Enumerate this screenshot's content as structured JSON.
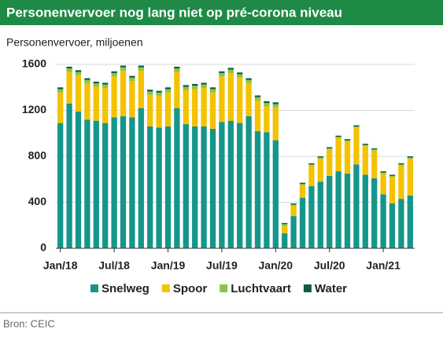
{
  "chart_data": {
    "type": "stacked_bar",
    "title": "Personenvervoer nog lang niet op pré-corona niveau",
    "y_label": "Personenvervoer, miljoenen",
    "source": "Bron: CEIC",
    "categories": [
      "Jan/18",
      null,
      null,
      null,
      null,
      null,
      "Jul/18",
      null,
      null,
      null,
      null,
      null,
      "Jan/19",
      null,
      null,
      null,
      null,
      null,
      "Jul/19",
      null,
      null,
      null,
      null,
      null,
      "Jan/20",
      null,
      null,
      null,
      null,
      null,
      "Jul/20",
      null,
      null,
      null,
      null,
      null,
      "Jan/21",
      null,
      null,
      null
    ],
    "series": [
      {
        "name": "Snelweg",
        "color": "#15968a",
        "values": [
          1090,
          1260,
          1190,
          1120,
          1110,
          1090,
          1140,
          1150,
          1140,
          1220,
          1060,
          1050,
          1060,
          1220,
          1080,
          1060,
          1060,
          1040,
          1100,
          1110,
          1090,
          1150,
          1020,
          1010,
          940,
          130,
          280,
          440,
          540,
          580,
          630,
          670,
          650,
          730,
          640,
          610,
          470,
          390,
          430,
          460
        ]
      },
      {
        "name": "Spoor",
        "color": "#f5c200",
        "values": [
          265,
          275,
          315,
          315,
          295,
          305,
          355,
          395,
          315,
          325,
          275,
          275,
          295,
          315,
          295,
          325,
          335,
          315,
          395,
          415,
          395,
          285,
          265,
          225,
          285,
          65,
          90,
          110,
          180,
          200,
          230,
          290,
          280,
          320,
          250,
          240,
          180,
          230,
          290,
          320
        ]
      },
      {
        "name": "Luchtvaart",
        "color": "#8cc63f",
        "values": [
          30,
          30,
          30,
          30,
          30,
          30,
          30,
          30,
          30,
          30,
          30,
          30,
          30,
          30,
          30,
          30,
          30,
          30,
          30,
          30,
          30,
          30,
          30,
          30,
          30,
          15,
          10,
          10,
          10,
          10,
          10,
          10,
          10,
          10,
          10,
          10,
          10,
          10,
          10,
          10
        ]
      },
      {
        "name": "Water",
        "color": "#0d5a48",
        "values": [
          15,
          15,
          15,
          15,
          15,
          15,
          15,
          15,
          15,
          15,
          15,
          15,
          15,
          15,
          15,
          15,
          15,
          15,
          15,
          15,
          15,
          15,
          15,
          15,
          15,
          10,
          10,
          10,
          10,
          10,
          10,
          10,
          10,
          10,
          10,
          10,
          10,
          10,
          10,
          10
        ]
      }
    ],
    "ylim": [
      0,
      1600
    ],
    "yticks": [
      0,
      400,
      800,
      1200,
      1600
    ],
    "grid": true,
    "legend": "bottom"
  }
}
